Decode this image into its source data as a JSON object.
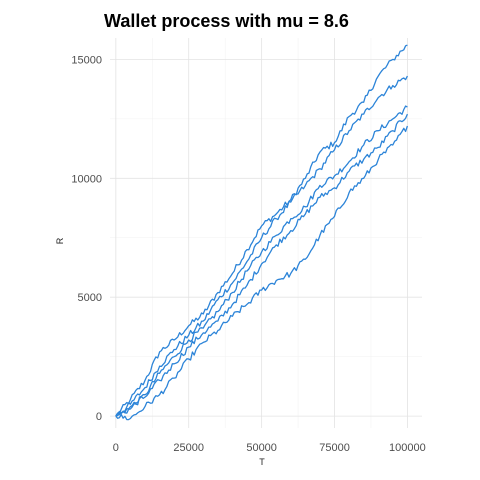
{
  "chart_data": {
    "type": "line",
    "title": "Wallet process with mu =  8.6",
    "xlabel": "T",
    "ylabel": "R",
    "xlim": [
      -2000,
      105000
    ],
    "ylim": [
      -500,
      15900
    ],
    "x_ticks": [
      0,
      25000,
      50000,
      75000,
      100000
    ],
    "x_tick_labels": [
      "0",
      "25000",
      "50000",
      "75000",
      "100000"
    ],
    "y_ticks": [
      0,
      5000,
      10000,
      15000
    ],
    "y_tick_labels": [
      "0",
      "5000",
      "10000",
      "15000"
    ],
    "grid": true,
    "line_color": "#2c84d8",
    "series": [
      {
        "x": [
          0,
          5000,
          10000,
          15000,
          20000,
          25000,
          30000,
          35000,
          40000,
          45000,
          50000,
          55000,
          60000,
          65000,
          70000,
          75000,
          80000,
          85000,
          90000,
          95000,
          100000
        ],
        "values": [
          0,
          700,
          1500,
          2700,
          3200,
          3800,
          4300,
          5200,
          6000,
          7000,
          8000,
          8500,
          9100,
          10000,
          11100,
          11500,
          12600,
          13200,
          14300,
          15000,
          15600
        ]
      },
      {
        "x": [
          0,
          5000,
          10000,
          15000,
          20000,
          25000,
          30000,
          35000,
          40000,
          45000,
          50000,
          55000,
          60000,
          65000,
          70000,
          75000,
          80000,
          85000,
          90000,
          95000,
          100000
        ],
        "values": [
          0,
          500,
          1200,
          2100,
          2800,
          3400,
          4000,
          4900,
          5600,
          6500,
          7500,
          8300,
          9000,
          9700,
          10400,
          11200,
          12000,
          12700,
          13400,
          13900,
          14300
        ]
      },
      {
        "x": [
          0,
          5000,
          10000,
          15000,
          20000,
          25000,
          30000,
          35000,
          40000,
          45000,
          50000,
          55000,
          60000,
          65000,
          70000,
          75000,
          80000,
          85000,
          90000,
          95000,
          100000
        ],
        "values": [
          0,
          300,
          900,
          1800,
          2500,
          3200,
          3700,
          4400,
          5200,
          6100,
          6900,
          7600,
          8300,
          8800,
          9700,
          10100,
          10700,
          11400,
          12000,
          12500,
          13000
        ]
      },
      {
        "x": [
          0,
          5000,
          10000,
          15000,
          20000,
          25000,
          30000,
          35000,
          40000,
          45000,
          50000,
          55000,
          60000,
          65000,
          70000,
          75000,
          80000,
          85000,
          90000,
          95000,
          100000
        ],
        "values": [
          0,
          400,
          800,
          1500,
          2200,
          2900,
          3500,
          4000,
          4700,
          5500,
          6400,
          7200,
          7800,
          8500,
          9200,
          9600,
          10300,
          10800,
          11300,
          12000,
          12700
        ]
      },
      {
        "x": [
          0,
          5000,
          10000,
          15000,
          20000,
          25000,
          30000,
          35000,
          40000,
          45000,
          50000,
          55000,
          60000,
          65000,
          70000,
          75000,
          80000,
          85000,
          90000,
          95000,
          100000
        ],
        "values": [
          0,
          -100,
          400,
          900,
          1600,
          2400,
          3100,
          3600,
          4200,
          4700,
          5300,
          5700,
          6000,
          6600,
          7600,
          8400,
          9400,
          10000,
          10800,
          11400,
          12200
        ]
      }
    ]
  }
}
